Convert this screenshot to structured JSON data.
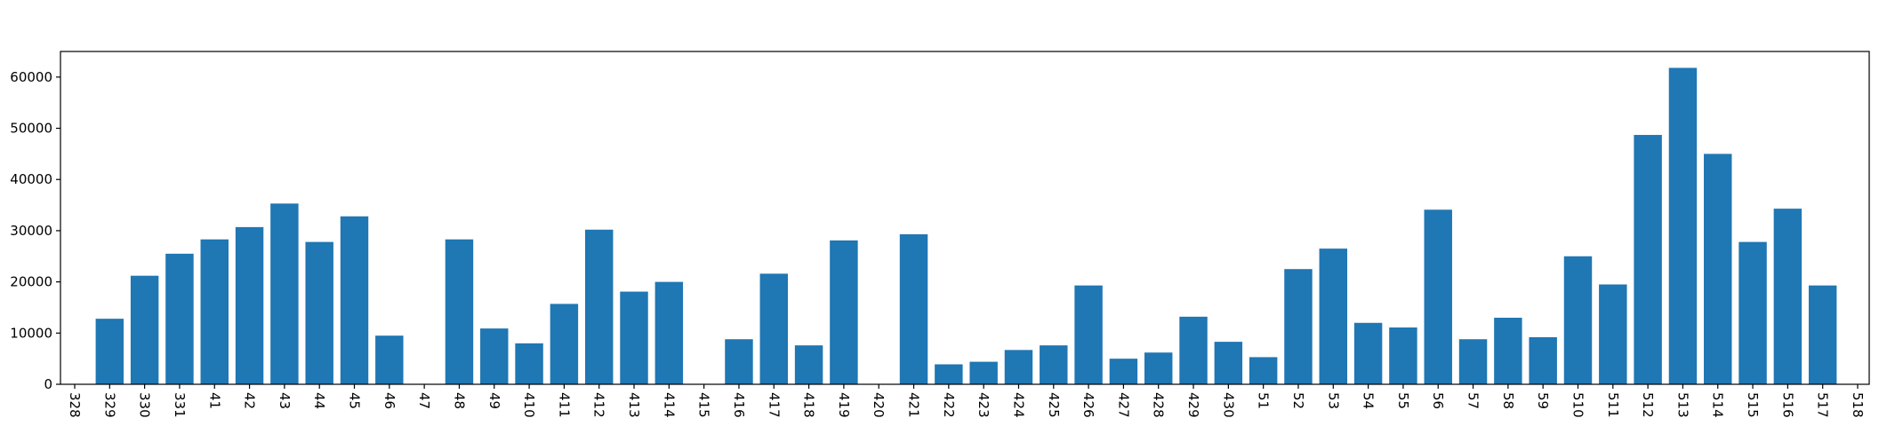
{
  "chart_data": {
    "type": "bar",
    "title": "",
    "xlabel": "",
    "ylabel": "",
    "grid": false,
    "colors": {
      "bar": "#1f77b4",
      "axis": "#000000",
      "background": "#ffffff"
    },
    "ylim": [
      0,
      65000
    ],
    "yticks": [
      0,
      10000,
      20000,
      30000,
      40000,
      50000,
      60000
    ],
    "categories": [
      "328",
      "329",
      "330",
      "331",
      "41",
      "42",
      "43",
      "44",
      "45",
      "46",
      "47",
      "48",
      "49",
      "410",
      "411",
      "412",
      "413",
      "414",
      "415",
      "416",
      "417",
      "418",
      "419",
      "420",
      "421",
      "422",
      "423",
      "424",
      "425",
      "426",
      "427",
      "428",
      "429",
      "430",
      "51",
      "52",
      "53",
      "54",
      "55",
      "56",
      "57",
      "58",
      "59",
      "510",
      "511",
      "512",
      "513",
      "514",
      "515",
      "516",
      "517",
      "518"
    ],
    "values": [
      0,
      12800,
      21200,
      25500,
      28300,
      30700,
      35300,
      27800,
      32800,
      9500,
      0,
      28300,
      10900,
      8000,
      15700,
      30200,
      18100,
      20000,
      0,
      8800,
      21600,
      7600,
      28100,
      0,
      29300,
      3900,
      4400,
      6700,
      7600,
      19300,
      5000,
      6200,
      13200,
      8300,
      5300,
      22500,
      26500,
      12000,
      11100,
      34100,
      8800,
      13000,
      9200,
      25000,
      19500,
      48700,
      61800,
      45000,
      27800,
      34300,
      19300,
      0
    ]
  }
}
